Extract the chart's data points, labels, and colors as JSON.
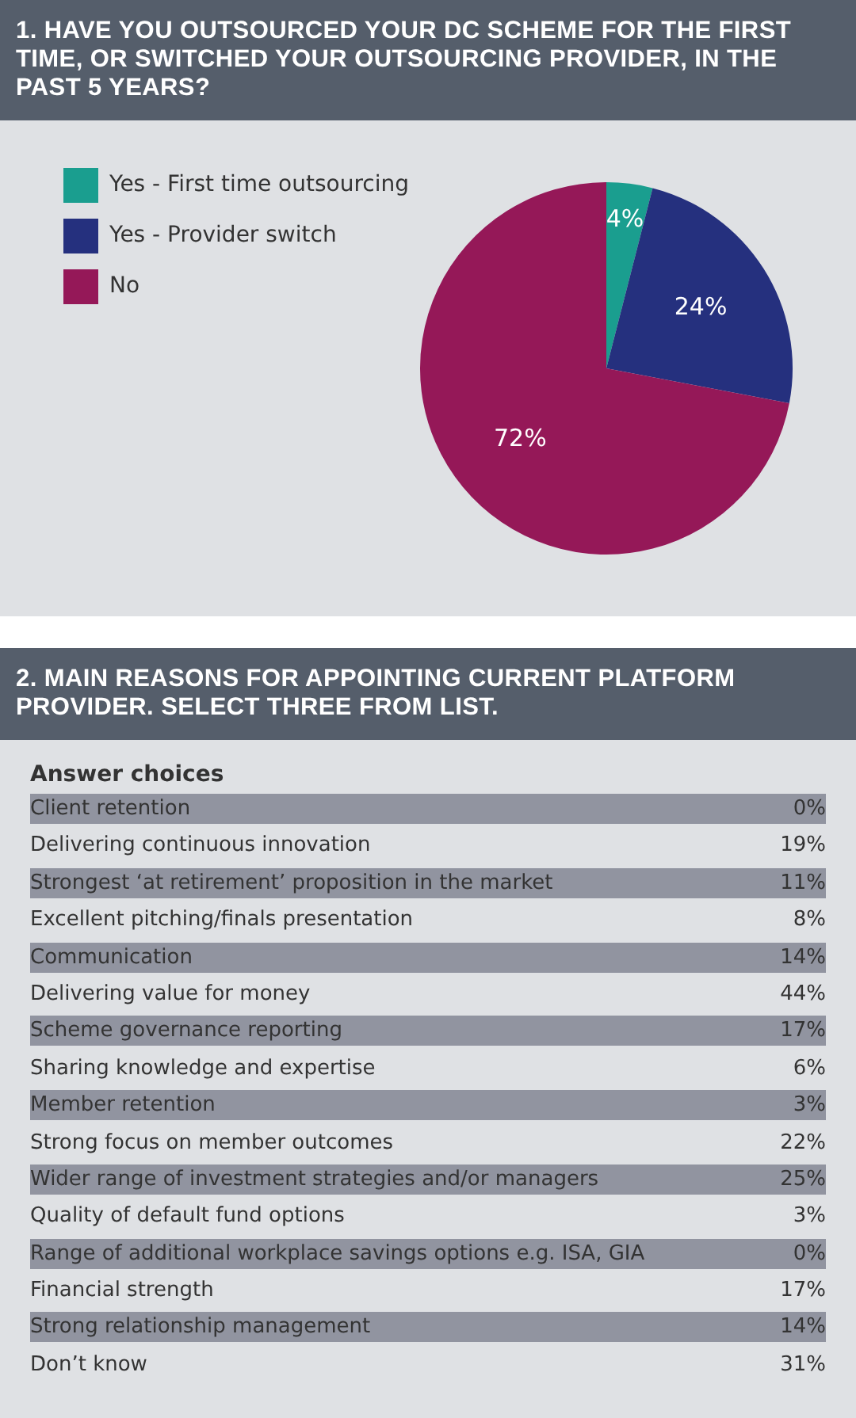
{
  "chart_data": [
    {
      "type": "pie",
      "title": "1. HAVE YOU OUTSOURCED YOUR DC SCHEME FOR THE FIRST TIME, OR SWITCHED YOUR OUTSOURCING PROVIDER, IN THE PAST 5 YEARS?",
      "categories": [
        "Yes - First time outsourcing",
        "Yes - Provider switch",
        "No"
      ],
      "values": [
        4,
        24,
        72
      ],
      "value_labels": [
        "4%",
        "24%",
        "72%"
      ],
      "colors": [
        "#1a9e8f",
        "#25307e",
        "#951858"
      ],
      "legend": "top left"
    },
    {
      "type": "other",
      "title": "2. MAIN REASONS FOR APPOINTING CURRENT PLATFORM PROVIDER. SELECT THREE FROM LIST.",
      "annotations": [
        "Answer choices"
      ],
      "categories": [
        "Client retention",
        "Delivering continuous innovation",
        "Strongest ‘at retirement’ proposition in the market",
        "Excellent pitching/finals presentation",
        "Communication",
        "Delivering value for money",
        "Scheme governance reporting",
        "Sharing knowledge and expertise",
        "Member retention",
        "Strong focus on member outcomes",
        "Wider range of investment strategies and/or managers",
        "Quality of default fund options",
        "Range of additional workplace savings options e.g. ISA, GIA",
        "Financial strength",
        "Strong relationship management",
        "Don’t know"
      ],
      "value_labels": [
        "0%",
        "19%",
        "11%",
        "8%",
        "14%",
        "44%",
        "17%",
        "6%",
        "3%",
        "22%",
        "25%",
        "3%",
        "0%",
        "17%",
        "14%",
        "31%"
      ]
    }
  ]
}
